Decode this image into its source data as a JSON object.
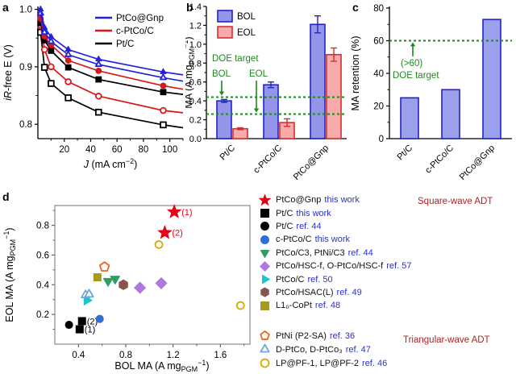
{
  "panels": {
    "a": "a",
    "b": "b",
    "c": "c",
    "d": "d"
  },
  "chart_data": [
    {
      "id": "a",
      "type": "line",
      "xlabel_parts": [
        {
          "t": "J",
          "italic": true
        },
        {
          "t": " (mA cm"
        },
        {
          "t": "−2",
          "sup": true
        },
        {
          "t": ")"
        }
      ],
      "ylabel_parts": [
        {
          "t": "iR",
          "italic": true
        },
        {
          "t": "-free E (V)"
        }
      ],
      "xlim": [
        0,
        110
      ],
      "ylim": [
        0.775,
        1.005
      ],
      "xticks": [
        {
          "v": 20,
          "l": "20"
        },
        {
          "v": 40,
          "l": "40"
        },
        {
          "v": 60,
          "l": "60"
        },
        {
          "v": 80,
          "l": "80"
        },
        {
          "v": 100,
          "l": "100"
        }
      ],
      "yticks": [
        {
          "v": 0.8,
          "l": "0.8"
        },
        {
          "v": 0.9,
          "l": "0.9"
        },
        {
          "v": 1.0,
          "l": "1.0"
        }
      ],
      "xminor": [
        10,
        30,
        50,
        70,
        90,
        110
      ],
      "yminor": [
        0.85,
        0.95
      ],
      "x": [
        2,
        5,
        10,
        23,
        46,
        95,
        110
      ],
      "series": [
        {
          "name": "Pt/C EOL",
          "color": "#000000",
          "marker": "square",
          "filled": false,
          "values": [
            0.96,
            0.899,
            0.871,
            0.846,
            0.821,
            0.799,
            0.794
          ]
        },
        {
          "name": "c-PtCo/C EOL",
          "color": "#d81818",
          "marker": "circle",
          "filled": false,
          "values": [
            0.972,
            0.93,
            0.9,
            0.874,
            0.849,
            0.824,
            0.82
          ]
        },
        {
          "name": "Pt/C BOL",
          "color": "#000000",
          "marker": "square",
          "filled": true,
          "values": [
            0.976,
            0.946,
            0.928,
            0.899,
            0.878,
            0.856,
            0.852
          ]
        },
        {
          "name": "c-PtCo/C BOL",
          "color": "#d81818",
          "marker": "circle",
          "filled": true,
          "values": [
            0.984,
            0.953,
            0.938,
            0.911,
            0.893,
            0.867,
            0.861
          ]
        },
        {
          "name": "PtCo@Gnp EOL",
          "color": "#2222dd",
          "marker": "tri-up",
          "filled": false,
          "values": [
            0.993,
            0.96,
            0.944,
            0.921,
            0.904,
            0.881,
            0.875
          ]
        },
        {
          "name": "PtCo@Gnp BOL",
          "color": "#2222dd",
          "marker": "tri-up",
          "filled": true,
          "values": [
            1.0,
            0.968,
            0.952,
            0.93,
            0.913,
            0.891,
            0.886
          ]
        }
      ],
      "legend": [
        {
          "label": "PtCo@Gnp",
          "color": "#2222dd"
        },
        {
          "label": "c-PtCo/C",
          "color": "#d81818"
        },
        {
          "label": "Pt/C",
          "color": "#000000"
        }
      ]
    },
    {
      "id": "b",
      "type": "grouped-bar",
      "ylabel_parts": [
        {
          "t": "MA (A mg"
        },
        {
          "t": "PGM",
          "sub": true
        },
        {
          "t": "−1",
          "sup": true
        },
        {
          "t": ")"
        }
      ],
      "categories": [
        "Pt/C",
        "c-PtCo/C",
        "PtCo@Gnp"
      ],
      "ylim": [
        0,
        1.4
      ],
      "yticks": [
        {
          "v": 0,
          "l": "0.0"
        },
        {
          "v": 0.2,
          "l": "0.2"
        },
        {
          "v": 0.4,
          "l": "0.4"
        },
        {
          "v": 0.6,
          "l": "0.6"
        },
        {
          "v": 0.8,
          "l": "0.8"
        },
        {
          "v": 1.0,
          "l": "1.0"
        },
        {
          "v": 1.2,
          "l": "1.2"
        },
        {
          "v": 1.4,
          "l": "1.4"
        }
      ],
      "series": [
        {
          "name": "BOL",
          "fill": "#9295e8",
          "stroke": "#2023c8",
          "values": [
            0.4,
            0.57,
            1.21
          ],
          "errors": [
            0.015,
            0.03,
            0.09
          ]
        },
        {
          "name": "EOL",
          "fill": "#f7aaaa",
          "stroke": "#d42f2f",
          "values": [
            0.105,
            0.17,
            0.89
          ],
          "errors": [
            0.01,
            0.04,
            0.07
          ]
        }
      ],
      "doe": {
        "color": "#1e8a1e",
        "title": "DOE target",
        "targets": [
          {
            "label": "BOL",
            "value": 0.44
          },
          {
            "label": "EOL",
            "value": 0.26
          }
        ]
      }
    },
    {
      "id": "c",
      "type": "bar",
      "ylabel_parts": [
        {
          "t": "MA retention (%)"
        }
      ],
      "categories": [
        "Pt/C",
        "c-PtCo/C",
        "PtCo@Gnp"
      ],
      "values": [
        25,
        30,
        73
      ],
      "bar_fill": "#9ba0ea",
      "bar_stroke": "#2023c8",
      "ylim": [
        0,
        80
      ],
      "yticks": [
        {
          "v": 0,
          "l": "0"
        },
        {
          "v": 20,
          "l": "20"
        },
        {
          "v": 40,
          "l": "40"
        },
        {
          "v": 60,
          "l": "60"
        },
        {
          "v": 80,
          "l": "80"
        }
      ],
      "doe": {
        "color": "#1e8a1e",
        "value": 60,
        "note": "(>60)",
        "title": "DOE target"
      }
    },
    {
      "id": "d",
      "type": "scatter",
      "xlabel_parts": [
        {
          "t": "BOL MA (A mg"
        },
        {
          "t": "PGM",
          "sub": true
        },
        {
          "t": "−1",
          "sup": true
        },
        {
          "t": ")"
        }
      ],
      "ylabel_parts": [
        {
          "t": "EOL MA (A mg"
        },
        {
          "t": "PGM",
          "sub": true
        },
        {
          "t": "−1",
          "sup": true
        },
        {
          "t": ")"
        }
      ],
      "xlim": [
        0.2,
        1.85
      ],
      "ylim": [
        0,
        0.933
      ],
      "xticks": [
        {
          "v": 0.4,
          "l": "0.4"
        },
        {
          "v": 0.8,
          "l": "0.8"
        },
        {
          "v": 1.2,
          "l": "1.2"
        },
        {
          "v": 1.6,
          "l": "1.6"
        }
      ],
      "yticks": [
        {
          "v": 0.2,
          "l": "0.2"
        },
        {
          "v": 0.4,
          "l": "0.4"
        },
        {
          "v": 0.6,
          "l": "0.6"
        },
        {
          "v": 0.8,
          "l": "0.8"
        }
      ],
      "xminor": [
        0.6,
        1.0,
        1.4,
        1.8
      ],
      "yminor": [
        0.1,
        0.3,
        0.5,
        0.7,
        0.9
      ],
      "points": [
        {
          "name": "PtCo@Gnp (1)",
          "x": 1.21,
          "y": 0.89,
          "marker": "star",
          "color": "#e60012",
          "filled": true,
          "r": 8,
          "label": "(1)"
        },
        {
          "name": "PtCo@Gnp (2)",
          "x": 1.13,
          "y": 0.75,
          "marker": "star",
          "color": "#e60012",
          "filled": true,
          "r": 8,
          "label": "(2)"
        },
        {
          "name": "Pt/C this work (2)",
          "x": 0.43,
          "y": 0.155,
          "marker": "square",
          "color": "#000000",
          "filled": true,
          "r": 4.5,
          "label": "(2)"
        },
        {
          "name": "Pt/C this work (1)",
          "x": 0.41,
          "y": 0.1,
          "marker": "square",
          "color": "#000000",
          "filled": true,
          "r": 4.5,
          "label": "(1)"
        },
        {
          "name": "Pt/C ref. 44",
          "x": 0.32,
          "y": 0.13,
          "marker": "circle",
          "color": "#000000",
          "filled": true,
          "r": 4.5
        },
        {
          "name": "c-PtCo/C this work",
          "x": 0.58,
          "y": 0.17,
          "marker": "circle",
          "color": "#2d6fd2",
          "filled": true,
          "r": 4.5
        },
        {
          "name": "PtCo/C3",
          "x": 0.65,
          "y": 0.425,
          "marker": "tri-down",
          "color": "#2f9e63",
          "filled": true,
          "r": 5.5
        },
        {
          "name": "PtNi/C3",
          "x": 0.71,
          "y": 0.44,
          "marker": "tri-down",
          "color": "#2f9e63",
          "filled": true,
          "r": 5.5
        },
        {
          "name": "PtCo/HSC-f",
          "x": 0.92,
          "y": 0.38,
          "marker": "diamond",
          "color": "#b077dd",
          "filled": true,
          "r": 6
        },
        {
          "name": "O-PtCo/HSC-f",
          "x": 1.1,
          "y": 0.41,
          "marker": "diamond",
          "color": "#b077dd",
          "filled": true,
          "r": 6
        },
        {
          "name": "PtCo/C ref. 50",
          "x": 0.47,
          "y": 0.295,
          "marker": "tri-right",
          "color": "#1fc4cc",
          "filled": true,
          "r": 5.5
        },
        {
          "name": "PtCo/HSAC(L)",
          "x": 0.78,
          "y": 0.4,
          "marker": "hexagon",
          "color": "#8a544e",
          "filled": true,
          "r": 5.5
        },
        {
          "name": "L10-CoPt",
          "x": 0.56,
          "y": 0.45,
          "marker": "square",
          "color": "#a39c1a",
          "filled": true,
          "r": 4.5
        },
        {
          "name": "PtNi (P2-SA)",
          "x": 0.62,
          "y": 0.52,
          "marker": "pentagon",
          "color": "#ee6418",
          "filled": false,
          "r": 5.5
        },
        {
          "name": "D-PtCo",
          "x": 0.46,
          "y": 0.33,
          "marker": "tri-up",
          "color": "#70a8d8",
          "filled": false,
          "r": 5
        },
        {
          "name": "D-PtCo3",
          "x": 0.49,
          "y": 0.335,
          "marker": "tri-up",
          "color": "#70a8d8",
          "filled": false,
          "r": 5
        },
        {
          "name": "LP@PF-1",
          "x": 1.08,
          "y": 0.67,
          "marker": "circle",
          "color": "#d4aa00",
          "filled": false,
          "r": 4.5
        },
        {
          "name": "LP@PF-2",
          "x": 1.77,
          "y": 0.26,
          "marker": "circle",
          "color": "#d4aa00",
          "filled": false,
          "r": 4.5
        }
      ],
      "header_color": "#b22222",
      "ref_color": "#2832cc",
      "legend_groups": [
        {
          "header": "Square-wave ADT",
          "items": [
            {
              "marker": "star",
              "color": "#e60012",
              "filled": true,
              "name": "PtCo@Gnp",
              "ref": "this work"
            },
            {
              "marker": "square",
              "color": "#000000",
              "filled": true,
              "name": "Pt/C",
              "ref": "this work"
            },
            {
              "marker": "circle",
              "color": "#000000",
              "filled": true,
              "name": "Pt/C",
              "ref": "ref. 44"
            },
            {
              "marker": "circle",
              "color": "#2d6fd2",
              "filled": true,
              "name": "c-PtCo/C",
              "ref": "this work"
            },
            {
              "marker": "tri-down",
              "color": "#2f9e63",
              "filled": true,
              "name": "PtCo/C3, PtNi/C3",
              "ref": "ref. 44"
            },
            {
              "marker": "diamond",
              "color": "#b077dd",
              "filled": true,
              "name": "PtCo/HSC-f, O-PtCo/HSC-f",
              "ref": "ref. 57"
            },
            {
              "marker": "tri-right",
              "color": "#1fc4cc",
              "filled": true,
              "name": "PtCo/C",
              "ref": "ref. 50"
            },
            {
              "marker": "hexagon",
              "color": "#8a544e",
              "filled": true,
              "name": "PtCo/HSAC(L)",
              "ref": "ref. 49"
            },
            {
              "marker": "square",
              "color": "#a39c1a",
              "filled": true,
              "name": "L1₀-CoPt",
              "ref": "ref. 48"
            }
          ]
        },
        {
          "header": "Triangular-wave ADT",
          "items": [
            {
              "marker": "pentagon",
              "color": "#ee6418",
              "filled": false,
              "name": "PtNi (P2-SA)",
              "ref": "ref. 36"
            },
            {
              "marker": "tri-up",
              "color": "#70a8d8",
              "filled": false,
              "name": "D-PtCo, D-PtCo₃",
              "ref": "ref. 47"
            },
            {
              "marker": "circle",
              "color": "#d4aa00",
              "filled": false,
              "name": "LP@PF-1, LP@PF-2",
              "ref": "ref. 46"
            }
          ]
        }
      ]
    }
  ]
}
